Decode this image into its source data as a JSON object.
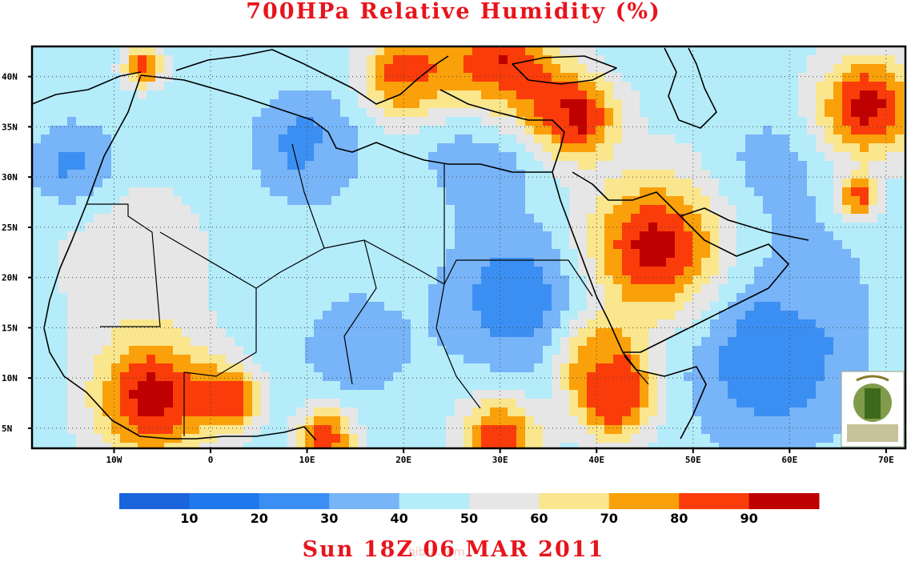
{
  "title": "700HPa Relative Humidity (%)",
  "footer": "Sun 18Z 06 MAR 2011",
  "watermark": "bibra.com",
  "logo": "university-seal",
  "map": {
    "lon_range": [
      -18.5,
      72
    ],
    "lat_range": [
      3,
      43
    ],
    "lon_ticks": [
      {
        "value": -10,
        "label": "10W"
      },
      {
        "value": 0,
        "label": "0"
      },
      {
        "value": 10,
        "label": "10E"
      },
      {
        "value": 20,
        "label": "20E"
      },
      {
        "value": 30,
        "label": "30E"
      },
      {
        "value": 40,
        "label": "40E"
      },
      {
        "value": 50,
        "label": "50E"
      },
      {
        "value": 60,
        "label": "60E"
      },
      {
        "value": 70,
        "label": "70E"
      }
    ],
    "lat_ticks": [
      {
        "value": 40,
        "label": "40N"
      },
      {
        "value": 35,
        "label": "35N"
      },
      {
        "value": 30,
        "label": "30N"
      },
      {
        "value": 25,
        "label": "25N"
      },
      {
        "value": 20,
        "label": "20N"
      },
      {
        "value": 15,
        "label": "15N"
      },
      {
        "value": 10,
        "label": "10N"
      },
      {
        "value": 5,
        "label": "5N"
      }
    ],
    "grid": "dotted"
  },
  "colorbar": {
    "labels": [
      "10",
      "20",
      "30",
      "40",
      "50",
      "60",
      "70",
      "80",
      "90"
    ],
    "colors": [
      "#1a64dc",
      "#1e78ee",
      "#3c8ff2",
      "#78b4f8",
      "#b4ecfa",
      "#e6e6e6",
      "#fae68c",
      "#faa00a",
      "#fa3c0a",
      "#be0000"
    ]
  },
  "humidity_blobs": [
    {
      "lon": 46,
      "lat": 23,
      "rh": 95,
      "spread": 7
    },
    {
      "lon": 42,
      "lat": 8,
      "rh": 92,
      "spread": 4
    },
    {
      "lon": -6,
      "lat": 8,
      "rh": 95,
      "spread": 6
    },
    {
      "lon": 2,
      "lat": 8,
      "rh": 88,
      "spread": 3
    },
    {
      "lon": 12,
      "lat": 4,
      "rh": 88,
      "spread": 3
    },
    {
      "lon": 30,
      "lat": 4,
      "rh": 88,
      "spread": 4
    },
    {
      "lon": 30,
      "lat": 40,
      "rh": 95,
      "spread": 6
    },
    {
      "lon": 20,
      "lat": 40,
      "rh": 88,
      "spread": 4
    },
    {
      "lon": 38,
      "lat": 36,
      "rh": 92,
      "spread": 4
    },
    {
      "lon": 68,
      "lat": 37,
      "rh": 95,
      "spread": 5
    },
    {
      "lon": 67,
      "lat": 28,
      "rh": 88,
      "spread": 2
    },
    {
      "lon": -7,
      "lat": 41,
      "rh": 85,
      "spread": 2
    },
    {
      "lon": 40,
      "lat": 12,
      "rh": 80,
      "spread": 4
    },
    {
      "lon": 20,
      "lat": 27,
      "rh": 45,
      "spread": 10
    },
    {
      "lon": -8,
      "lat": 22,
      "rh": 58,
      "spread": 8
    },
    {
      "lon": 10,
      "lat": 33,
      "rh": 25,
      "spread": 5
    },
    {
      "lon": 28,
      "lat": 33,
      "rh": 22,
      "spread": 5
    },
    {
      "lon": 32,
      "lat": 18,
      "rh": 22,
      "spread": 7
    },
    {
      "lon": 58,
      "lat": 12,
      "rh": 20,
      "spread": 8
    },
    {
      "lon": -14,
      "lat": 31,
      "rh": 25,
      "spread": 4
    },
    {
      "lon": 58,
      "lat": 31,
      "rh": 35,
      "spread": 6
    },
    {
      "lon": 15,
      "lat": 13,
      "rh": 35,
      "spread": 6
    },
    {
      "lon": 63,
      "lat": 20,
      "rh": 40,
      "spread": 6
    },
    {
      "lon": 52,
      "lat": 40,
      "rh": 50,
      "spread": 6
    }
  ]
}
